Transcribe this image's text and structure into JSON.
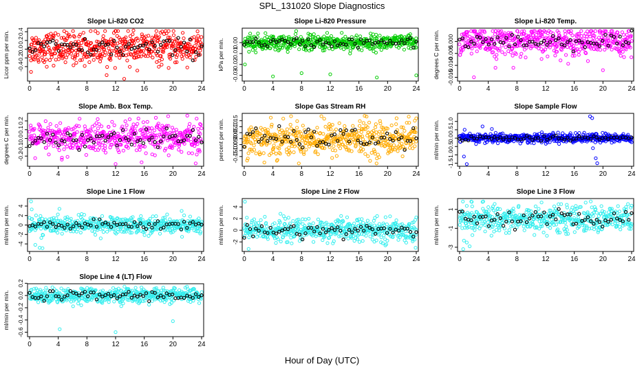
{
  "figure": {
    "title": "SPL_131020  Slope Diagnostics",
    "xlabel": "Hour of Day (UTC)"
  },
  "chart_data": [
    {
      "type": "scatter",
      "title": "Slope Li-820 CO2",
      "ylabel": "Licor ppm per min.",
      "xlim": [
        0,
        24
      ],
      "ylim": [
        -0.7,
        0.45
      ],
      "xticks": [
        0,
        4,
        8,
        12,
        16,
        20,
        24
      ],
      "yticks": [
        -0.4,
        -0.2,
        0.0,
        0.2,
        0.4
      ],
      "ytick_labels": [
        "-0.4",
        "-0.2",
        "0.0",
        "0.2",
        "0.4"
      ],
      "color": "#ff0000",
      "center": 0.03,
      "spread": 0.18,
      "outliers": [
        [
          0.2,
          -0.52
        ],
        [
          5.0,
          -0.3
        ],
        [
          13.2,
          -0.68
        ],
        [
          14.5,
          0.43
        ],
        [
          22.0,
          -0.42
        ]
      ]
    },
    {
      "type": "scatter",
      "title": "Slope Li-820 Pressure",
      "ylabel": "kPa per min.",
      "xlim": [
        0,
        24
      ],
      "ylim": [
        -0.034,
        0.012
      ],
      "xticks": [
        0,
        4,
        8,
        12,
        16,
        20,
        24
      ],
      "yticks": [
        -0.03,
        -0.02,
        -0.01,
        0.0
      ],
      "ytick_labels": [
        "-0.03",
        "-0.02",
        "-0.01",
        "0.00"
      ],
      "color": "#00cc00",
      "center": 0.0,
      "spread": 0.0035,
      "outliers": [
        [
          0.1,
          -0.02
        ],
        [
          4.0,
          -0.031
        ],
        [
          8.0,
          -0.028
        ],
        [
          12.0,
          -0.029
        ],
        [
          13.6,
          0.009
        ],
        [
          18.5,
          -0.032
        ],
        [
          24.0,
          -0.03
        ],
        [
          1.6,
          -0.009
        ]
      ]
    },
    {
      "type": "scatter",
      "title": "Slope Li-820 Temp.",
      "ylabel": "degrees C per min.",
      "xlim": [
        0,
        24
      ],
      "ylim": [
        -0.016,
        0.005
      ],
      "xticks": [
        0,
        4,
        8,
        12,
        16,
        20,
        24
      ],
      "yticks": [
        -0.015,
        -0.01,
        -0.005,
        0.0
      ],
      "ytick_labels": [
        "-0.015",
        "-0.010",
        "-0.005",
        "0.000"
      ],
      "color": "#ff00ff",
      "center": 0.0,
      "spread": 0.0028,
      "outliers": [
        [
          2.0,
          -0.015
        ],
        [
          5.0,
          -0.011
        ],
        [
          7.5,
          -0.011
        ],
        [
          20.0,
          -0.012
        ],
        [
          11.0,
          0.004
        ]
      ]
    },
    {
      "type": "scatter",
      "title": "Slope Amb. Box Temp.",
      "ylabel": "degrees C per min.",
      "xlim": [
        0,
        24
      ],
      "ylim": [
        -0.3,
        0.27
      ],
      "xticks": [
        0,
        4,
        8,
        12,
        16,
        20,
        24
      ],
      "yticks": [
        -0.2,
        -0.1,
        0.0,
        0.1,
        0.2
      ],
      "ytick_labels": [
        "-0.2",
        "-0.1",
        "0.0",
        "0.1",
        "0.2"
      ],
      "color": "#ff00ff",
      "center": 0.0,
      "spread": 0.09,
      "outliers": [
        [
          12.0,
          -0.29
        ],
        [
          9.5,
          0.22
        ],
        [
          22.0,
          0.26
        ],
        [
          4.5,
          -0.24
        ]
      ]
    },
    {
      "type": "scatter",
      "title": "Slope Gas Stream RH",
      "ylabel": "percent per min.",
      "xlim": [
        0,
        24
      ],
      "ylim": [
        -0.22,
        0.2
      ],
      "xticks": [
        0,
        4,
        8,
        12,
        16,
        20,
        24
      ],
      "yticks": [
        -0.15,
        -0.1,
        -0.05,
        0.0,
        0.05,
        0.1,
        0.15
      ],
      "ytick_labels": [
        "-0.15",
        "-0.10",
        "-0.05",
        "0.00",
        "0.05",
        "0.10",
        "0.15"
      ],
      "color": "#ffaa00",
      "center": 0.0,
      "spread": 0.07,
      "outliers": [
        [
          2.8,
          -0.2
        ],
        [
          16.8,
          0.19
        ],
        [
          24.0,
          0.17
        ],
        [
          23.8,
          0.15
        ]
      ]
    },
    {
      "type": "scatter",
      "title": "Slope Sample Flow",
      "ylabel": "ml/min per min.",
      "xlim": [
        0,
        24
      ],
      "ylim": [
        -1.6,
        1.4
      ],
      "xticks": [
        0,
        4,
        8,
        12,
        16,
        20,
        24
      ],
      "yticks": [
        -1.5,
        -1.0,
        -0.5,
        0.0,
        0.5,
        1.0
      ],
      "ytick_labels": [
        "-1.5",
        "-1.0",
        "-0.5",
        "0.0",
        "0.5",
        "1.0"
      ],
      "color": "#0000ff",
      "center": 0.0,
      "spread": 0.14,
      "outliers": [
        [
          1.0,
          -1.55
        ],
        [
          0.6,
          -1.1
        ],
        [
          3.2,
          0.7
        ],
        [
          4.5,
          0.55
        ],
        [
          18.2,
          1.3
        ],
        [
          18.5,
          1.2
        ],
        [
          19.0,
          -1.2
        ],
        [
          18.6,
          -0.6
        ],
        [
          19.2,
          -1.5
        ]
      ]
    },
    {
      "type": "scatter",
      "title": "Slope Line 1 Flow",
      "ylabel": "ml/min per min.",
      "xlim": [
        0,
        24
      ],
      "ylim": [
        -5.3,
        5.3
      ],
      "xticks": [
        0,
        4,
        8,
        12,
        16,
        20,
        24
      ],
      "yticks": [
        -4,
        -2,
        0,
        2,
        4
      ],
      "ytick_labels": [
        "-4",
        "-2",
        "0",
        "2",
        "4"
      ],
      "color": "#33eeee",
      "center": 0.0,
      "spread": 0.9,
      "outliers": [
        [
          0.2,
          5.0
        ],
        [
          0.8,
          -4.2
        ],
        [
          1.4,
          -4.8
        ],
        [
          1.8,
          -4.9
        ],
        [
          0.3,
          3.3
        ],
        [
          23.8,
          -1.8
        ]
      ]
    },
    {
      "type": "scatter",
      "title": "Slope Line 2 Flow",
      "ylabel": "ml/min per min.",
      "xlim": [
        0,
        24
      ],
      "ylim": [
        -3.4,
        5.2
      ],
      "xticks": [
        0,
        4,
        8,
        12,
        16,
        20,
        24
      ],
      "yticks": [
        -2,
        0,
        2,
        4
      ],
      "ytick_labels": [
        "-2",
        "0",
        "2",
        "4"
      ],
      "color": "#33eeee",
      "center": 0.0,
      "spread": 0.95,
      "outliers": [
        [
          0.1,
          4.9
        ],
        [
          0.6,
          -3.2
        ],
        [
          23.9,
          -3.0
        ],
        [
          23.5,
          -1.9
        ]
      ]
    },
    {
      "type": "scatter",
      "title": "Slope Line 3 Flow",
      "ylabel": "ml/min per min.",
      "xlim": [
        0,
        24
      ],
      "ylim": [
        -3.3,
        2.0
      ],
      "xticks": [
        0,
        4,
        8,
        12,
        16,
        20,
        24
      ],
      "yticks": [
        -3,
        -1,
        1
      ],
      "ytick_labels": [
        "-3",
        "-1",
        "1"
      ],
      "color": "#33eeee",
      "center": 0.0,
      "spread": 0.7,
      "outliers": [
        [
          0.6,
          -2.3
        ],
        [
          1.0,
          -2.5
        ],
        [
          1.4,
          -2.9
        ],
        [
          0.5,
          -3.2
        ],
        [
          1.7,
          1.8
        ],
        [
          24.0,
          1.4
        ]
      ]
    },
    {
      "type": "scatter",
      "title": "Slope Line 4 (LT) Flow",
      "ylabel": "ml/min per min.",
      "xlim": [
        0,
        24
      ],
      "ylim": [
        -0.65,
        0.17
      ],
      "xticks": [
        0,
        4,
        8,
        12,
        16,
        20,
        24
      ],
      "yticks": [
        -0.6,
        -0.4,
        -0.2,
        0.0,
        0.2
      ],
      "ytick_labels": [
        "-0.6",
        "-0.4",
        "-0.2",
        "0.0",
        "0.2"
      ],
      "color": "#33eeee",
      "center": 0.0,
      "spread": 0.06,
      "outliers": [
        [
          4.2,
          -0.55
        ],
        [
          12.0,
          -0.6
        ],
        [
          20.0,
          -0.42
        ],
        [
          0.3,
          -0.05
        ]
      ]
    }
  ]
}
